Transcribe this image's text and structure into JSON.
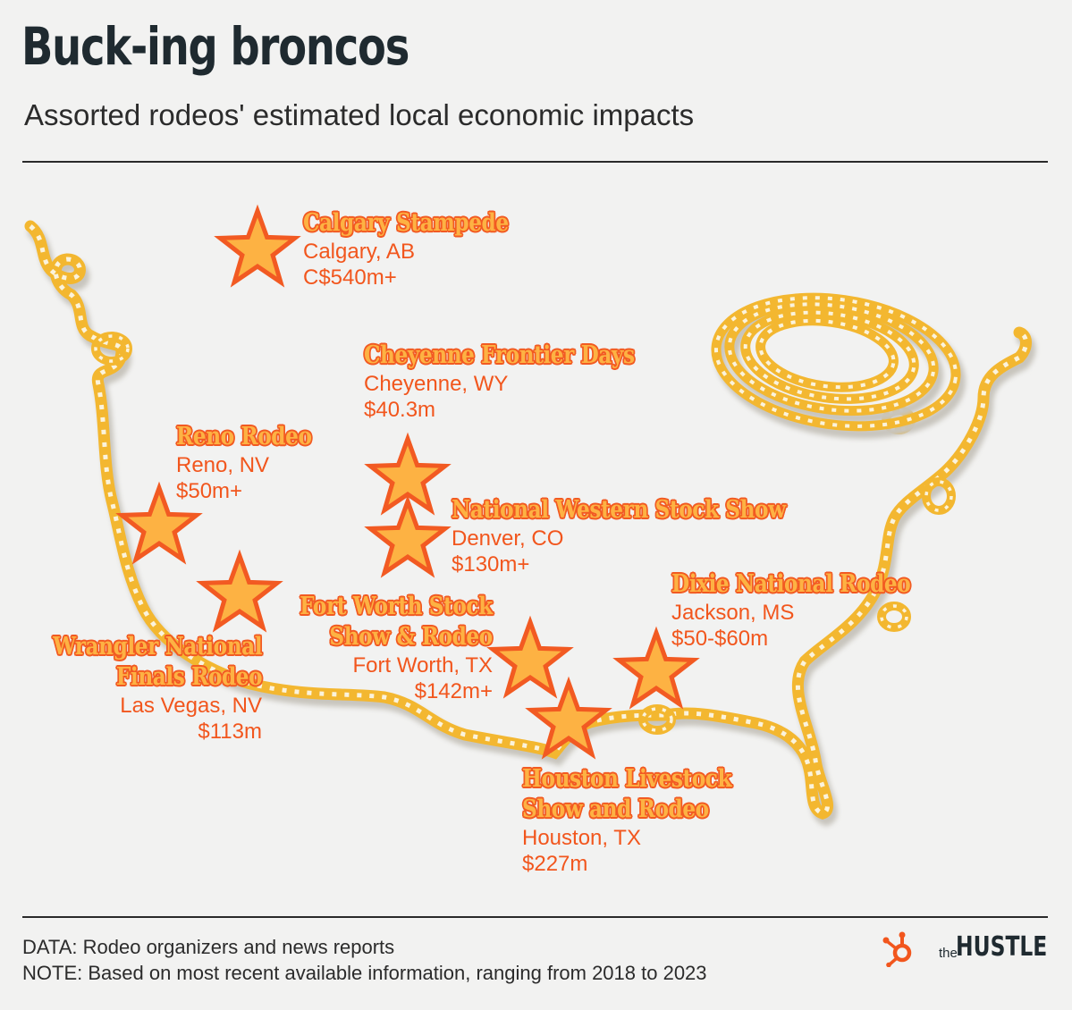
{
  "title": "Buck-ing broncos",
  "subtitle": "Assorted rodeos' estimated local economic impacts",
  "rodeos": [
    {
      "name": "Calgary Stampede",
      "place": "Calgary, AB",
      "impact": "C$540m+"
    },
    {
      "name": "Cheyenne Frontier Days",
      "place": "Cheyenne, WY",
      "impact": "$40.3m"
    },
    {
      "name": "Reno Rodeo",
      "place": "Reno, NV",
      "impact": "$50m+"
    },
    {
      "name": "National Western Stock Show",
      "place": "Denver, CO",
      "impact": "$130m+"
    },
    {
      "name": "Dixie National Rodeo",
      "place": "Jackson, MS",
      "impact": "$50-$60m"
    },
    {
      "name_lines": [
        "Fort Worth Stock",
        "Show & Rodeo"
      ],
      "place": "Fort Worth, TX",
      "impact": "$142m+"
    },
    {
      "name_lines": [
        "Wrangler National",
        "Finals Rodeo"
      ],
      "place": "Las Vegas, NV",
      "impact": "$113m"
    },
    {
      "name_lines": [
        "Houston Livestock",
        "Show and Rodeo"
      ],
      "place": "Houston, TX",
      "impact": "$227m"
    }
  ],
  "footer": {
    "data": "DATA: Rodeo organizers and news reports",
    "note": "NOTE: Based on most recent available information, ranging from 2018 to 2023"
  },
  "brand": {
    "prefix": "the",
    "name": "HUSTLE",
    "logo_icon": "hubspot-sprocket-icon"
  },
  "colors": {
    "background": "#f2f2f1",
    "rope": "#f3b730",
    "rope_stripe": "#fbf3dc",
    "star_fill": "#fdb243",
    "star_outline": "#f25a22",
    "accent": "#f2561d"
  }
}
